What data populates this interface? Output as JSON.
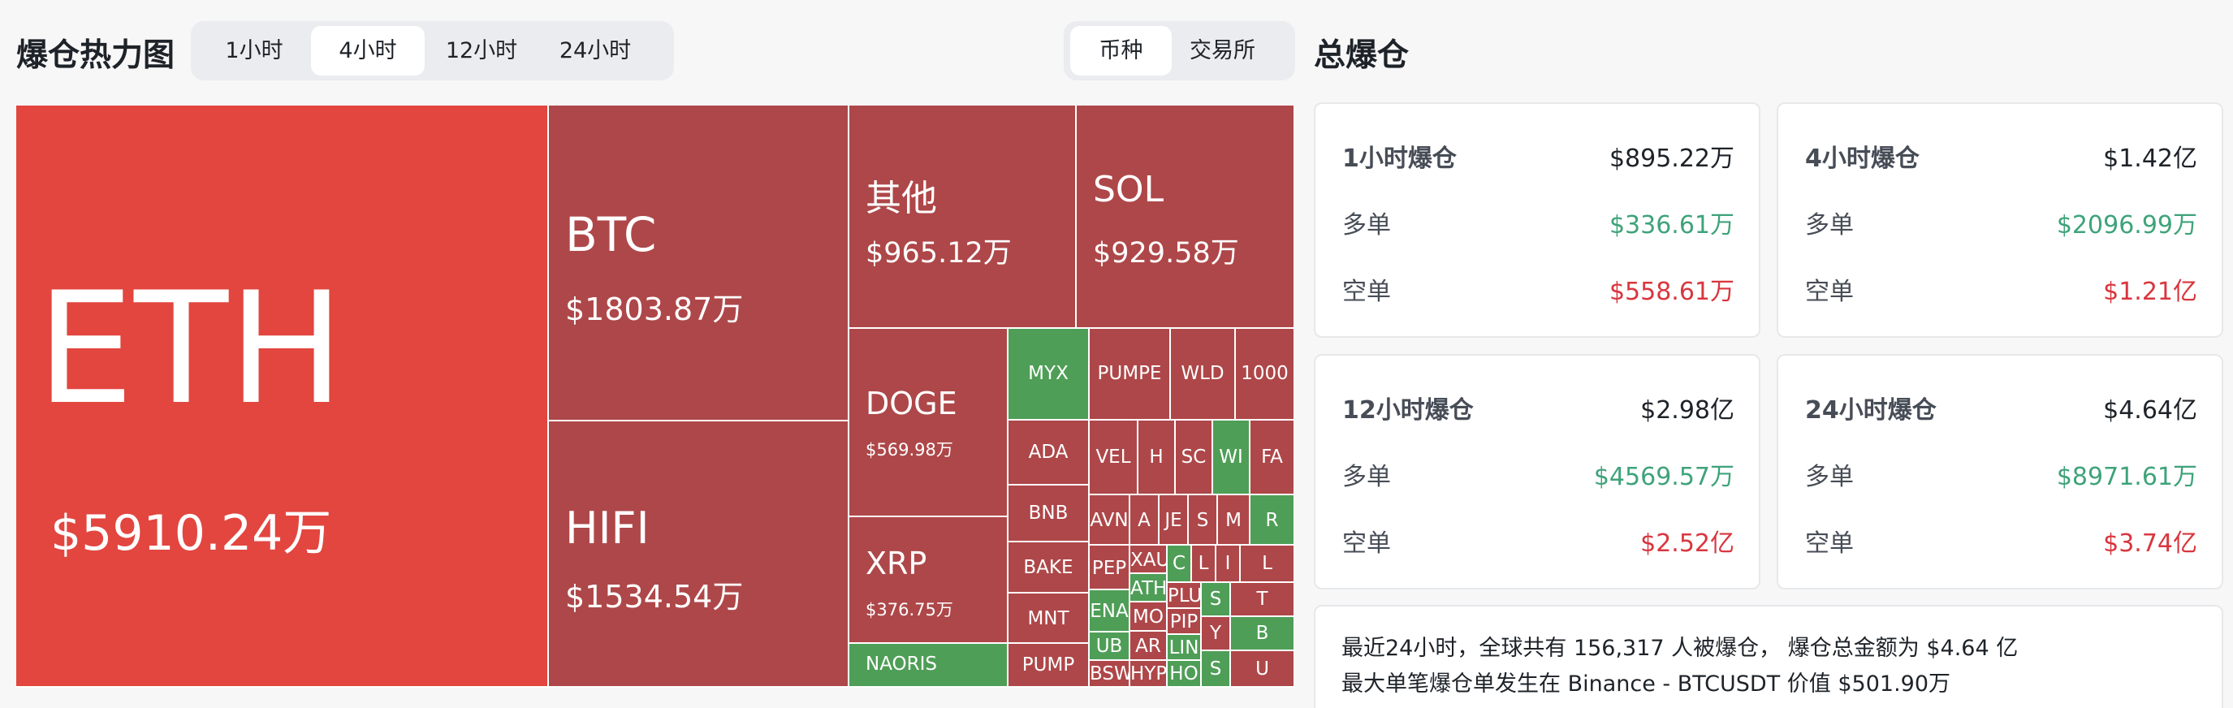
{
  "header": {
    "title": "爆仓热力图",
    "time_tabs": [
      "1小时",
      "4小时",
      "12小时",
      "24小时"
    ],
    "time_selected": "4小时",
    "type_tabs": [
      "币种",
      "交易所"
    ],
    "type_selected": "币种",
    "summary_title": "总爆仓"
  },
  "colors": {
    "loss_red": "#e2463f",
    "short_red": "#ae4749",
    "long_green": "#4f9e57",
    "up_green": "#3fa37a",
    "down_red": "#d9363e"
  },
  "heatmap": {
    "tiles": [
      {
        "symbol": "ETH",
        "amount": "$5910.24万"
      },
      {
        "symbol": "BTC",
        "amount": "$1803.87万"
      },
      {
        "symbol": "HIFI",
        "amount": "$1534.54万"
      },
      {
        "symbol": "其他",
        "amount": "$965.12万"
      },
      {
        "symbol": "SOL",
        "amount": "$929.58万"
      },
      {
        "symbol": "DOGE",
        "amount": "$569.98万"
      },
      {
        "symbol": "XRP",
        "amount": "$376.75万"
      },
      {
        "symbol": "NAORIS"
      },
      {
        "symbol": "MYX"
      },
      {
        "symbol": "ADA"
      },
      {
        "symbol": "BNB"
      },
      {
        "symbol": "BAKE"
      },
      {
        "symbol": "MNT"
      },
      {
        "symbol": "PUMP"
      },
      {
        "symbol": "PUMPE"
      },
      {
        "symbol": "WLD"
      },
      {
        "symbol": "1000"
      },
      {
        "symbol": "VEL"
      },
      {
        "symbol": "H"
      },
      {
        "symbol": "SC"
      },
      {
        "symbol": "WI"
      },
      {
        "symbol": "FA"
      },
      {
        "symbol": "AVN"
      },
      {
        "symbol": "A"
      },
      {
        "symbol": "JE"
      },
      {
        "symbol": "S"
      },
      {
        "symbol": "M"
      },
      {
        "symbol": "R"
      },
      {
        "symbol": "PEP"
      },
      {
        "symbol": "XAU"
      },
      {
        "symbol": "ATH"
      },
      {
        "symbol": "ENA"
      },
      {
        "symbol": "MO"
      },
      {
        "symbol": "UB"
      },
      {
        "symbol": "AR"
      },
      {
        "symbol": "BSW"
      },
      {
        "symbol": "HYP"
      },
      {
        "symbol": "C"
      },
      {
        "symbol": "L"
      },
      {
        "symbol": "I"
      },
      {
        "symbol": "L"
      },
      {
        "symbol": "PLU"
      },
      {
        "symbol": "PIP"
      },
      {
        "symbol": "S"
      },
      {
        "symbol": "T"
      },
      {
        "symbol": "LIN"
      },
      {
        "symbol": "Y"
      },
      {
        "symbol": "B"
      },
      {
        "symbol": "HO"
      },
      {
        "symbol": "S"
      },
      {
        "symbol": "U"
      }
    ]
  },
  "summary": {
    "cards": [
      {
        "period": "1小时爆仓",
        "total": "$895.22万",
        "long_label": "多单",
        "long": "$336.61万",
        "short_label": "空单",
        "short": "$558.61万"
      },
      {
        "period": "4小时爆仓",
        "total": "$1.42亿",
        "long_label": "多单",
        "long": "$2096.99万",
        "short_label": "空单",
        "short": "$1.21亿"
      },
      {
        "period": "12小时爆仓",
        "total": "$2.98亿",
        "long_label": "多单",
        "long": "$4569.57万",
        "short_label": "空单",
        "short": "$2.52亿"
      },
      {
        "period": "24小时爆仓",
        "total": "$4.64亿",
        "long_label": "多单",
        "long": "$8971.61万",
        "short_label": "空单",
        "short": "$3.74亿"
      }
    ],
    "note_line1": "最近24小时，全球共有 156,317 人被爆仓， 爆仓总金额为 $4.64 亿",
    "note_line2": "最大单笔爆仓单发生在 Binance - BTCUSDT 价值 $501.90万"
  }
}
